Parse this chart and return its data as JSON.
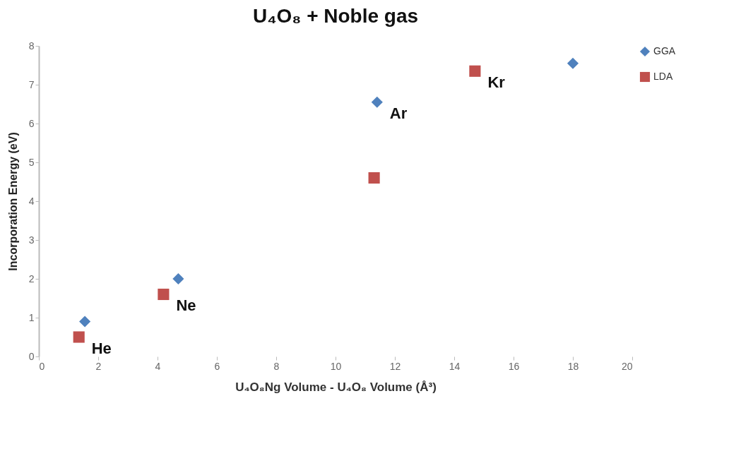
{
  "chart_data": {
    "type": "scatter",
    "title": "U₄O₈ + Noble gas",
    "xlabel": "U₄O₈Ng Volume - U₄O₈ Volume (Å³)",
    "ylabel": "Incorporation Energy (eV)",
    "series": [
      {
        "name": "GGA",
        "color": "#4f81bd",
        "marker": "diamond",
        "x": [
          1.55,
          4.7,
          11.4,
          18
        ],
        "values": [
          0.9,
          2.0,
          6.55,
          7.55
        ]
      },
      {
        "name": "LDA",
        "color": "#c0504d",
        "marker": "square",
        "x": [
          1.35,
          4.2,
          11.3,
          14.7
        ],
        "values": [
          0.5,
          1.6,
          4.6,
          7.35
        ]
      }
    ],
    "annotations": [
      {
        "text": "He",
        "x": 1.35,
        "y": 0.5
      },
      {
        "text": "Ne",
        "x": 4.2,
        "y": 1.6
      },
      {
        "text": "Ar",
        "x": 11.4,
        "y": 6.55
      },
      {
        "text": "Kr",
        "x": 14.7,
        "y": 7.35
      }
    ],
    "xlim": [
      0,
      20
    ],
    "xticks": [
      0,
      2,
      4,
      6,
      8,
      10,
      12,
      14,
      16,
      18,
      20
    ],
    "ylim": [
      0,
      8
    ],
    "yticks": [
      0,
      1,
      2,
      3,
      4,
      5,
      6,
      7,
      8
    ],
    "grid": false,
    "legend": "right"
  }
}
